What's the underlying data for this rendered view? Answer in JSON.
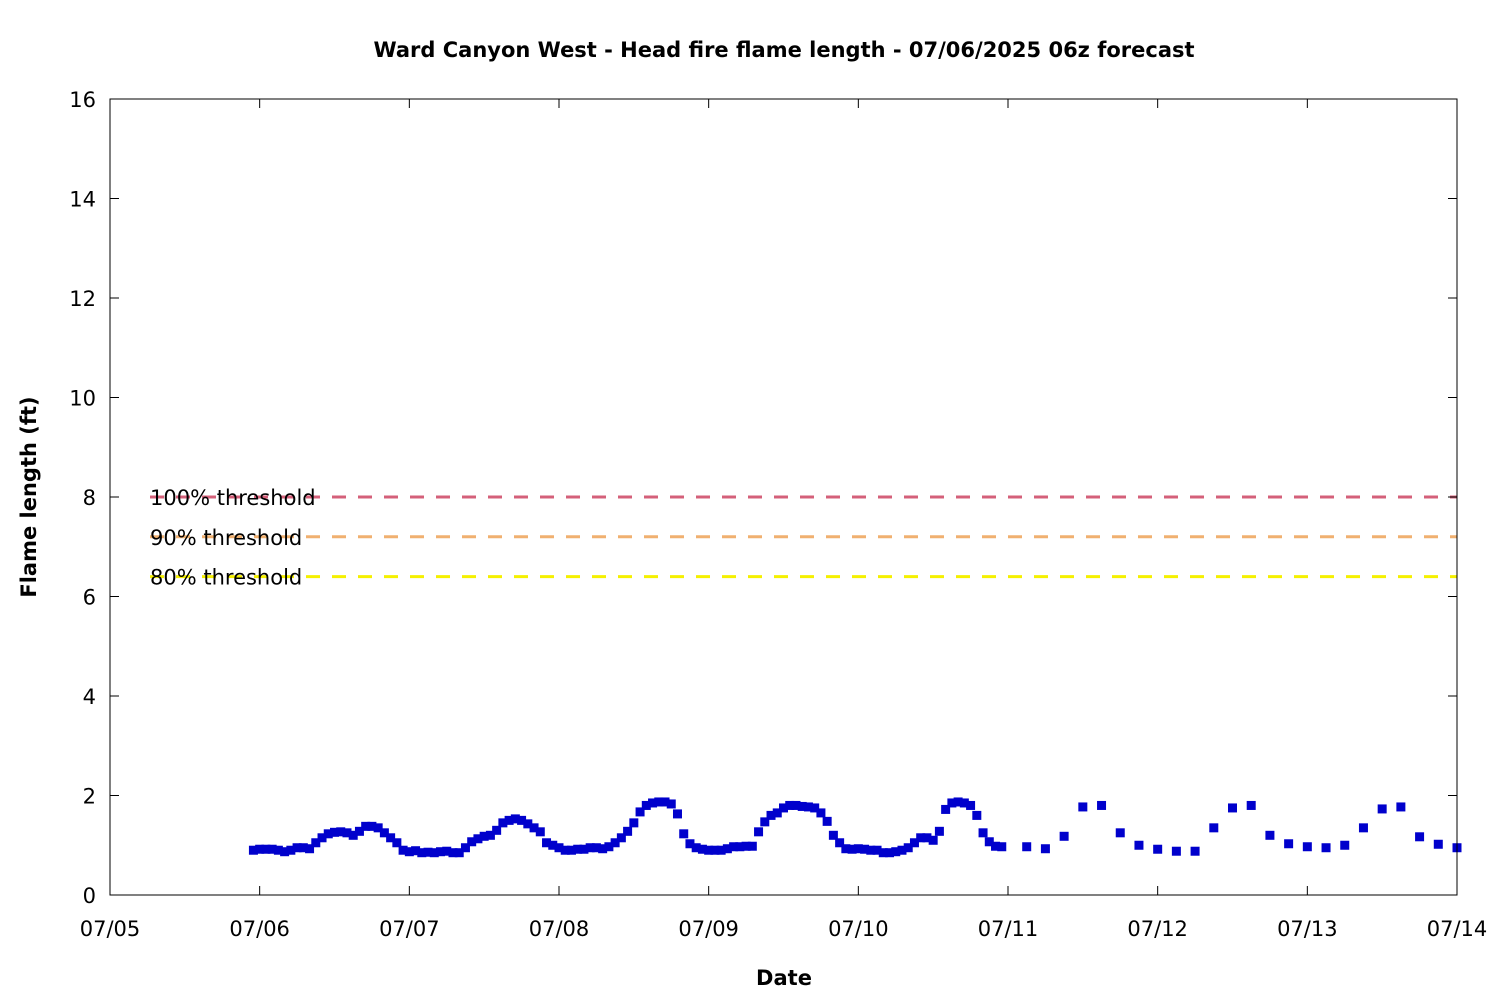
{
  "chart_data": {
    "type": "scatter",
    "title": "Ward Canyon West - Head fire flame length - 07/06/2025 06z forecast",
    "xlabel": "Date",
    "ylabel": "Flame length (ft)",
    "x_ticks": [
      "07/05",
      "07/06",
      "07/07",
      "07/08",
      "07/09",
      "07/10",
      "07/11",
      "07/12",
      "07/13",
      "07/14"
    ],
    "xlim": [
      "07/05 00z",
      "07/14 00z"
    ],
    "y_ticks": [
      0,
      2,
      4,
      6,
      8,
      10,
      12,
      14,
      16
    ],
    "ylim": [
      0,
      16
    ],
    "grid": false,
    "colors": {
      "points": "#0000cc",
      "threshold_100": "#d4607a",
      "threshold_90": "#f0b070",
      "threshold_80": "#f5f000"
    },
    "thresholds": [
      {
        "name": "100% threshold",
        "value": 8.0,
        "color": "#d4607a"
      },
      {
        "name": "90% threshold",
        "value": 7.2,
        "color": "#f0b070"
      },
      {
        "name": "80% threshold",
        "value": 6.4,
        "color": "#f5f000"
      }
    ],
    "legend_position": "left",
    "series": [
      {
        "marker": "square",
        "color": "#0000cc",
        "points": [
          [
            "07/05 23z",
            0.9
          ],
          [
            "07/06 00z",
            0.92
          ],
          [
            "07/06 01z",
            0.92
          ],
          [
            "07/06 02z",
            0.92
          ],
          [
            "07/06 03z",
            0.9
          ],
          [
            "07/06 04z",
            0.87
          ],
          [
            "07/06 05z",
            0.9
          ],
          [
            "07/06 06z",
            0.95
          ],
          [
            "07/06 07z",
            0.95
          ],
          [
            "07/06 08z",
            0.93
          ],
          [
            "07/06 09z",
            1.05
          ],
          [
            "07/06 10z",
            1.15
          ],
          [
            "07/06 11z",
            1.23
          ],
          [
            "07/06 12z",
            1.26
          ],
          [
            "07/06 13z",
            1.27
          ],
          [
            "07/06 14z",
            1.25
          ],
          [
            "07/06 15z",
            1.2
          ],
          [
            "07/06 16z",
            1.28
          ],
          [
            "07/06 17z",
            1.38
          ],
          [
            "07/06 18z",
            1.38
          ],
          [
            "07/06 19z",
            1.35
          ],
          [
            "07/06 20z",
            1.25
          ],
          [
            "07/06 21z",
            1.15
          ],
          [
            "07/06 22z",
            1.05
          ],
          [
            "07/06 23z",
            0.9
          ],
          [
            "07/07 00z",
            0.87
          ],
          [
            "07/07 01z",
            0.89
          ],
          [
            "07/07 02z",
            0.85
          ],
          [
            "07/07 03z",
            0.86
          ],
          [
            "07/07 04z",
            0.85
          ],
          [
            "07/07 05z",
            0.87
          ],
          [
            "07/07 06z",
            0.88
          ],
          [
            "07/07 07z",
            0.85
          ],
          [
            "07/07 08z",
            0.85
          ],
          [
            "07/07 09z",
            0.95
          ],
          [
            "07/07 10z",
            1.07
          ],
          [
            "07/07 11z",
            1.13
          ],
          [
            "07/07 12z",
            1.18
          ],
          [
            "07/07 13z",
            1.2
          ],
          [
            "07/07 14z",
            1.3
          ],
          [
            "07/07 15z",
            1.45
          ],
          [
            "07/07 16z",
            1.5
          ],
          [
            "07/07 17z",
            1.53
          ],
          [
            "07/07 18z",
            1.5
          ],
          [
            "07/07 19z",
            1.43
          ],
          [
            "07/07 20z",
            1.35
          ],
          [
            "07/07 21z",
            1.27
          ],
          [
            "07/07 22z",
            1.05
          ],
          [
            "07/07 23z",
            1.0
          ],
          [
            "07/08 00z",
            0.95
          ],
          [
            "07/08 01z",
            0.9
          ],
          [
            "07/08 02z",
            0.9
          ],
          [
            "07/08 03z",
            0.92
          ],
          [
            "07/08 04z",
            0.92
          ],
          [
            "07/08 05z",
            0.95
          ],
          [
            "07/08 06z",
            0.95
          ],
          [
            "07/08 07z",
            0.93
          ],
          [
            "07/08 08z",
            0.97
          ],
          [
            "07/08 09z",
            1.05
          ],
          [
            "07/08 10z",
            1.15
          ],
          [
            "07/08 11z",
            1.28
          ],
          [
            "07/08 12z",
            1.45
          ],
          [
            "07/08 13z",
            1.67
          ],
          [
            "07/08 14z",
            1.8
          ],
          [
            "07/08 15z",
            1.85
          ],
          [
            "07/08 16z",
            1.87
          ],
          [
            "07/08 17z",
            1.87
          ],
          [
            "07/08 18z",
            1.83
          ],
          [
            "07/08 19z",
            1.63
          ],
          [
            "07/08 20z",
            1.23
          ],
          [
            "07/08 21z",
            1.03
          ],
          [
            "07/08 22z",
            0.95
          ],
          [
            "07/08 23z",
            0.92
          ],
          [
            "07/09 00z",
            0.9
          ],
          [
            "07/09 01z",
            0.9
          ],
          [
            "07/09 02z",
            0.9
          ],
          [
            "07/09 03z",
            0.93
          ],
          [
            "07/09 04z",
            0.97
          ],
          [
            "07/09 05z",
            0.97
          ],
          [
            "07/09 06z",
            0.98
          ],
          [
            "07/09 07z",
            0.98
          ],
          [
            "07/09 08z",
            1.27
          ],
          [
            "07/09 09z",
            1.47
          ],
          [
            "07/09 10z",
            1.6
          ],
          [
            "07/09 11z",
            1.65
          ],
          [
            "07/09 12z",
            1.75
          ],
          [
            "07/09 13z",
            1.8
          ],
          [
            "07/09 14z",
            1.8
          ],
          [
            "07/09 15z",
            1.78
          ],
          [
            "07/09 16z",
            1.77
          ],
          [
            "07/09 17z",
            1.75
          ],
          [
            "07/09 18z",
            1.65
          ],
          [
            "07/09 19z",
            1.48
          ],
          [
            "07/09 20z",
            1.2
          ],
          [
            "07/09 21z",
            1.05
          ],
          [
            "07/09 22z",
            0.93
          ],
          [
            "07/09 23z",
            0.92
          ],
          [
            "07/10 00z",
            0.93
          ],
          [
            "07/10 01z",
            0.92
          ],
          [
            "07/10 02z",
            0.9
          ],
          [
            "07/10 03z",
            0.9
          ],
          [
            "07/10 04z",
            0.85
          ],
          [
            "07/10 05z",
            0.85
          ],
          [
            "07/10 06z",
            0.87
          ],
          [
            "07/10 07z",
            0.9
          ],
          [
            "07/10 08z",
            0.95
          ],
          [
            "07/10 09z",
            1.05
          ],
          [
            "07/10 10z",
            1.15
          ],
          [
            "07/10 11z",
            1.15
          ],
          [
            "07/10 12z",
            1.1
          ],
          [
            "07/10 13z",
            1.28
          ],
          [
            "07/10 14z",
            1.72
          ],
          [
            "07/10 15z",
            1.85
          ],
          [
            "07/10 16z",
            1.87
          ],
          [
            "07/10 17z",
            1.85
          ],
          [
            "07/10 18z",
            1.8
          ],
          [
            "07/10 19z",
            1.6
          ],
          [
            "07/10 20z",
            1.25
          ],
          [
            "07/10 21z",
            1.07
          ],
          [
            "07/10 22z",
            0.98
          ],
          [
            "07/10 23z",
            0.97
          ],
          [
            "07/11 03z",
            0.97
          ],
          [
            "07/11 06z",
            0.93
          ],
          [
            "07/11 09z",
            1.18
          ],
          [
            "07/11 12z",
            1.77
          ],
          [
            "07/11 15z",
            1.8
          ],
          [
            "07/11 18z",
            1.25
          ],
          [
            "07/11 21z",
            1.0
          ],
          [
            "07/12 00z",
            0.92
          ],
          [
            "07/12 03z",
            0.88
          ],
          [
            "07/12 06z",
            0.88
          ],
          [
            "07/12 09z",
            1.35
          ],
          [
            "07/12 12z",
            1.75
          ],
          [
            "07/12 15z",
            1.8
          ],
          [
            "07/12 18z",
            1.2
          ],
          [
            "07/12 21z",
            1.03
          ],
          [
            "07/13 00z",
            0.97
          ],
          [
            "07/13 03z",
            0.95
          ],
          [
            "07/13 06z",
            1.0
          ],
          [
            "07/13 09z",
            1.35
          ],
          [
            "07/13 12z",
            1.73
          ],
          [
            "07/13 15z",
            1.77
          ],
          [
            "07/13 18z",
            1.17
          ],
          [
            "07/13 21z",
            1.02
          ],
          [
            "07/13 24z",
            0.95
          ]
        ]
      }
    ]
  }
}
